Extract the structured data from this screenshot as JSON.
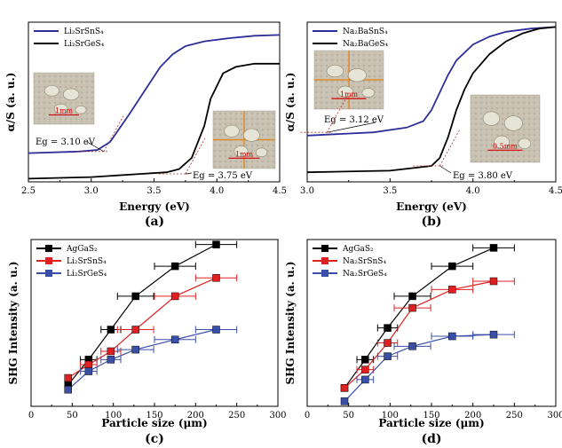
{
  "chart_data": [
    {
      "panel": "(a)",
      "type": "line",
      "xlabel": "Energy (eV)",
      "ylabel": "α/S (a. u.)",
      "xlim": [
        2.5,
        4.5
      ],
      "ylim": [
        0,
        1
      ],
      "xticks": [
        "2.5",
        "3.0",
        "3.5",
        "4.0",
        "4.5"
      ],
      "legend_position": "top-left",
      "series": [
        {
          "name": "Li₂SrSnS₄",
          "color": "#2e2e9a",
          "x": [
            2.5,
            2.9,
            3.05,
            3.15,
            3.3,
            3.45,
            3.55,
            3.65,
            3.75,
            3.9,
            4.1,
            4.3,
            4.5
          ],
          "y": [
            0.18,
            0.19,
            0.2,
            0.25,
            0.42,
            0.6,
            0.72,
            0.8,
            0.85,
            0.88,
            0.9,
            0.915,
            0.92
          ]
        },
        {
          "name": "Li₂SrGeS₄",
          "color": "#000000",
          "x": [
            2.5,
            3.0,
            3.4,
            3.6,
            3.7,
            3.8,
            3.9,
            3.95,
            4.05,
            4.15,
            4.3,
            4.5
          ],
          "y": [
            0.02,
            0.03,
            0.05,
            0.06,
            0.08,
            0.15,
            0.35,
            0.52,
            0.68,
            0.72,
            0.74,
            0.74
          ]
        }
      ],
      "annotations": [
        {
          "text": "Eg = 3.10 eV",
          "x": 3.1
        },
        {
          "text": "Eg = 3.75 eV",
          "x": 3.75
        }
      ],
      "photo_scale_labels": [
        "1mm",
        "1mm"
      ]
    },
    {
      "panel": "(b)",
      "type": "line",
      "xlabel": "Energy (eV)",
      "ylabel": "α/S (a. u.)",
      "xlim": [
        3.0,
        4.5
      ],
      "ylim": [
        0,
        1
      ],
      "xticks": [
        "3.0",
        "3.5",
        "4.0",
        "4.5"
      ],
      "legend_position": "top-left",
      "series": [
        {
          "name": "Na₂BaSnS₄",
          "color": "#2e2e9a",
          "x": [
            3.0,
            3.4,
            3.6,
            3.7,
            3.75,
            3.8,
            3.85,
            3.9,
            4.0,
            4.1,
            4.2,
            4.35,
            4.5
          ],
          "y": [
            0.29,
            0.31,
            0.34,
            0.38,
            0.45,
            0.56,
            0.67,
            0.76,
            0.86,
            0.91,
            0.94,
            0.96,
            0.97
          ]
        },
        {
          "name": "Na₂BaGeS₄",
          "color": "#000000",
          "x": [
            3.0,
            3.5,
            3.75,
            3.8,
            3.85,
            3.9,
            3.95,
            4.0,
            4.1,
            4.2,
            4.3,
            4.4,
            4.5
          ],
          "y": [
            0.06,
            0.07,
            0.1,
            0.15,
            0.28,
            0.45,
            0.58,
            0.68,
            0.8,
            0.88,
            0.93,
            0.96,
            0.97
          ]
        }
      ],
      "annotations": [
        {
          "text": "Eg = 3.12 eV",
          "x": 3.12
        },
        {
          "text": "Eg = 3.80 eV",
          "x": 3.8
        }
      ],
      "photo_scale_labels": [
        "1mm",
        "0.5mm"
      ]
    },
    {
      "panel": "(c)",
      "type": "scatter",
      "xlabel": "Particle size (μm)",
      "ylabel": "SHG Intensity (a. u.)",
      "xlim": [
        0,
        300
      ],
      "ylim": [
        0,
        1
      ],
      "xticks": [
        "0",
        "50",
        "100",
        "150",
        "200",
        "250",
        "300"
      ],
      "legend_position": "top-left",
      "series": [
        {
          "name": "AgGaS₂",
          "color": "#000000",
          "x": [
            45,
            70,
            97,
            127,
            175,
            225
          ],
          "y": [
            0.13,
            0.28,
            0.46,
            0.66,
            0.84,
            0.97
          ],
          "xerr": [
            [
              0,
              0
            ],
            [
              10,
              10
            ],
            [
              12,
              12
            ],
            [
              22,
              22
            ],
            [
              25,
              25
            ],
            [
              25,
              25
            ]
          ]
        },
        {
          "name": "Li₂SrSnS₄",
          "color": "#e02020",
          "x": [
            45,
            70,
            97,
            127,
            175,
            225
          ],
          "y": [
            0.17,
            0.25,
            0.33,
            0.46,
            0.66,
            0.77
          ],
          "xerr": [
            [
              0,
              0
            ],
            [
              10,
              10
            ],
            [
              12,
              12
            ],
            [
              22,
              22
            ],
            [
              25,
              25
            ],
            [
              25,
              25
            ]
          ]
        },
        {
          "name": "Li₂SrGeS₄",
          "color": "#3a4fa8",
          "x": [
            45,
            70,
            97,
            127,
            175,
            225
          ],
          "y": [
            0.1,
            0.21,
            0.28,
            0.34,
            0.4,
            0.46
          ],
          "xerr": [
            [
              0,
              0
            ],
            [
              10,
              10
            ],
            [
              12,
              12
            ],
            [
              22,
              22
            ],
            [
              25,
              25
            ],
            [
              25,
              25
            ]
          ]
        }
      ]
    },
    {
      "panel": "(d)",
      "type": "scatter",
      "xlabel": "Particle size (μm)",
      "ylabel": "SHG Intensity (a. u.)",
      "xlim": [
        0,
        300
      ],
      "ylim": [
        0,
        1
      ],
      "xticks": [
        "0",
        "50",
        "100",
        "150",
        "200",
        "250",
        "300"
      ],
      "legend_position": "top-left",
      "series": [
        {
          "name": "AgGaS₂",
          "color": "#000000",
          "x": [
            45,
            70,
            97,
            127,
            175,
            225
          ],
          "y": [
            0.11,
            0.28,
            0.47,
            0.66,
            0.84,
            0.95
          ],
          "xerr": [
            [
              0,
              0
            ],
            [
              10,
              10
            ],
            [
              12,
              12
            ],
            [
              22,
              22
            ],
            [
              25,
              25
            ],
            [
              25,
              25
            ]
          ]
        },
        {
          "name": "Na₂SrSnS₄",
          "color": "#e02020",
          "x": [
            45,
            70,
            97,
            127,
            175,
            225
          ],
          "y": [
            0.11,
            0.22,
            0.38,
            0.59,
            0.7,
            0.75
          ],
          "xerr": [
            [
              0,
              0
            ],
            [
              10,
              10
            ],
            [
              12,
              12
            ],
            [
              22,
              22
            ],
            [
              25,
              25
            ],
            [
              25,
              25
            ]
          ]
        },
        {
          "name": "Na₂SrGeS₄",
          "color": "#3a4fa8",
          "x": [
            45,
            70,
            97,
            127,
            175,
            225
          ],
          "y": [
            0.03,
            0.16,
            0.3,
            0.36,
            0.42,
            0.43
          ],
          "xerr": [
            [
              0,
              0
            ],
            [
              10,
              10
            ],
            [
              12,
              12
            ],
            [
              22,
              22
            ],
            [
              25,
              25
            ],
            [
              25,
              25
            ]
          ]
        }
      ]
    }
  ]
}
